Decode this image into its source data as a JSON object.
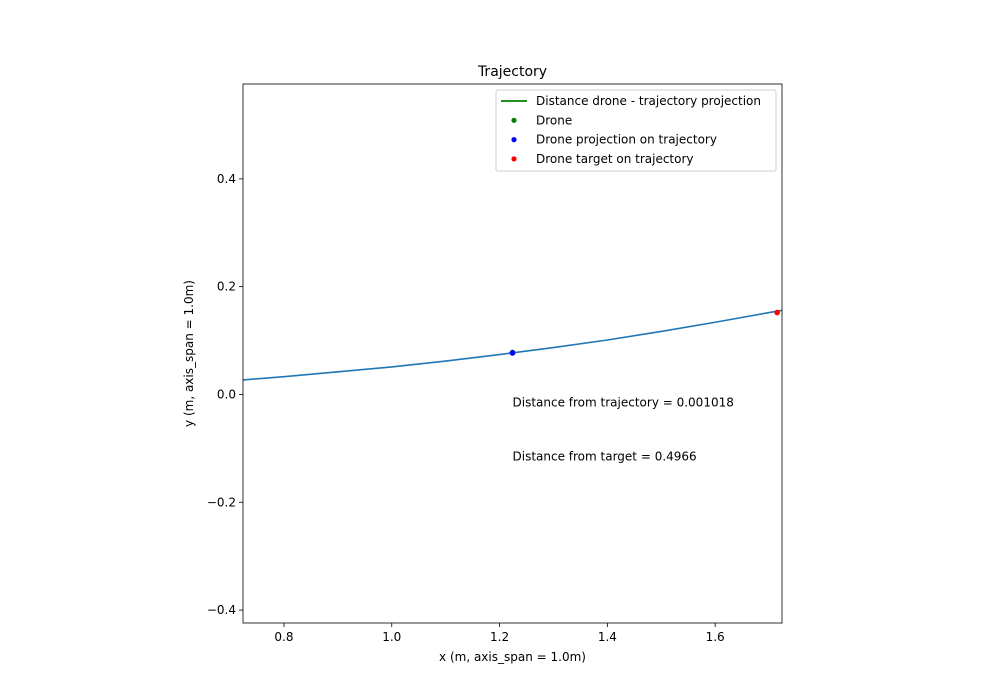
{
  "chart_data": {
    "type": "line",
    "title": "Trajectory",
    "xlabel": "x (m, axis_span = 1.0m)",
    "ylabel": "y (m, axis_span = 1.0m)",
    "xlim": [
      0.724,
      1.724
    ],
    "ylim": [
      -0.424,
      0.576
    ],
    "xticks": [
      0.8,
      1.0,
      1.2,
      1.4,
      1.6
    ],
    "yticks": [
      -0.4,
      -0.2,
      0.0,
      0.2,
      0.4
    ],
    "xtick_labels": [
      "0.8",
      "1.0",
      "1.2",
      "1.4",
      "1.6"
    ],
    "ytick_labels": [
      "−0.4",
      "−0.2",
      "0.0",
      "0.2",
      "0.4"
    ],
    "grid": false,
    "legend_position": "upper-right",
    "legend": [
      {
        "label": "Distance drone - trajectory projection",
        "marker": "line",
        "color": "#008000"
      },
      {
        "label": "Drone",
        "marker": "dot",
        "color": "#008000"
      },
      {
        "label": "Drone projection on trajectory",
        "marker": "dot",
        "color": "#0000ff"
      },
      {
        "label": "Drone target on trajectory",
        "marker": "dot",
        "color": "#ff0000"
      }
    ],
    "series": [
      {
        "color": "#1f77b4",
        "x": [
          0.724,
          0.8,
          0.9,
          1.0,
          1.1,
          1.2,
          1.3,
          1.4,
          1.5,
          1.6,
          1.7,
          1.724
        ],
        "y": [
          0.027,
          0.033,
          0.042,
          0.051,
          0.062,
          0.074,
          0.087,
          0.101,
          0.117,
          0.134,
          0.152,
          0.156
        ]
      }
    ],
    "points": {
      "drone": {
        "x": 1.224,
        "y": 0.078,
        "color": "#008000"
      },
      "projection": {
        "x": 1.224,
        "y": 0.077,
        "color": "#0000ff"
      },
      "target": {
        "x": 1.715,
        "y": 0.152,
        "color": "#ff0000"
      }
    },
    "annotations": [
      {
        "text": "Distance from trajectory = 0.001018",
        "x": 1.224,
        "y": -0.015
      },
      {
        "text": "Distance from target = 0.4966",
        "x": 1.224,
        "y": -0.115
      }
    ]
  }
}
